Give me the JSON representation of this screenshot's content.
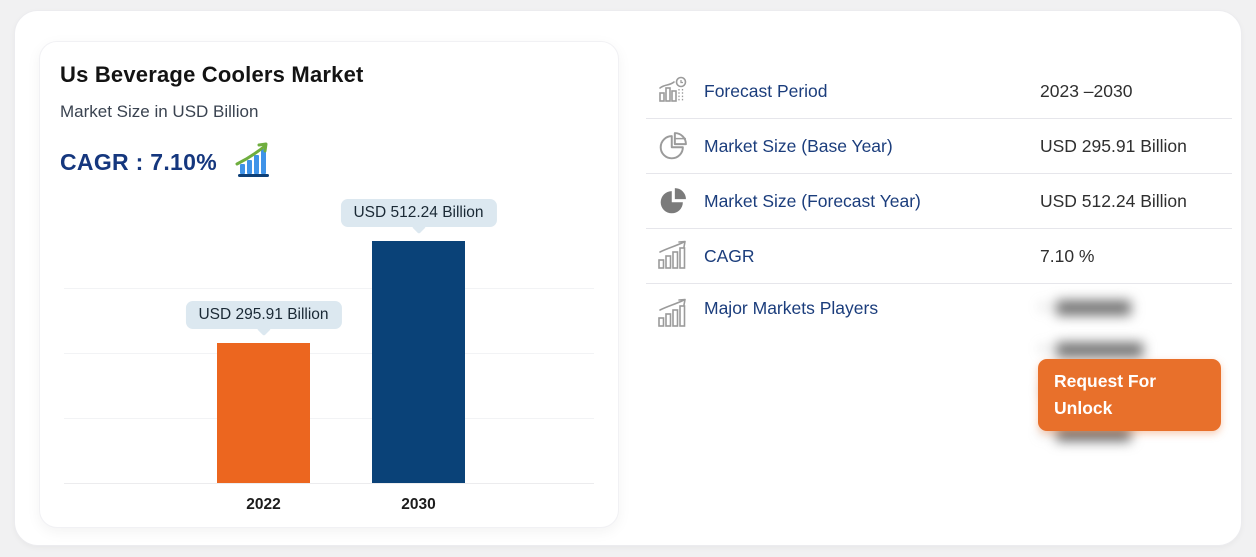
{
  "chart_card": {
    "title": "Us Beverage Coolers Market",
    "subtitle": "Market Size in USD Billion",
    "cagr_label": "CAGR : 7.10%"
  },
  "chart_data": {
    "type": "bar",
    "title": "Us Beverage Coolers Market",
    "subtitle": "Market Size in USD Billion",
    "categories": [
      "2022",
      "2030"
    ],
    "values": [
      295.91,
      512.24
    ],
    "value_labels": [
      "USD 295.91 Billion",
      "USD 512.24 Billion"
    ],
    "bar_colors": [
      "#EC661F",
      "#0A4278"
    ],
    "cagr": "7.10%",
    "ylabel": "Market Size in USD Billion",
    "xlabel": "",
    "ylim": [
      0,
      512.24
    ],
    "grid": true,
    "legend": "none",
    "tooltip_bg": "#DCE8F0"
  },
  "info_panel": {
    "rows": [
      {
        "icon": "forecast-chart-icon",
        "label": "Forecast Period",
        "value": "2023 –2030"
      },
      {
        "icon": "pie-outline-icon",
        "label": "Market Size (Base Year)",
        "value": "USD 295.91 Billion"
      },
      {
        "icon": "pie-solid-icon",
        "label": "Market Size (Forecast Year)",
        "value": "USD 512.24 Billion"
      },
      {
        "icon": "bar-growth-icon",
        "label": "CAGR",
        "value": "7.10 %"
      },
      {
        "icon": "bar-growth-icon",
        "label": "Major Markets Players",
        "value": ""
      }
    ],
    "locked_items": [
      "▆▆▆▆▆▆",
      "▆▆▆▆▆▆▆",
      "▆▆▆▆▆",
      "▆▆▆▆▆▆"
    ],
    "locked_bullet": "+",
    "unlock_button": {
      "line1": "Request For",
      "line2": "Unlock",
      "color": "#E8702B"
    }
  },
  "colors": {
    "bar_2022": "#EC661F",
    "bar_2030": "#0A4278",
    "accent_navy": "#15377E",
    "button_orange": "#E8702B",
    "label_navy": "#1B3D7C"
  }
}
